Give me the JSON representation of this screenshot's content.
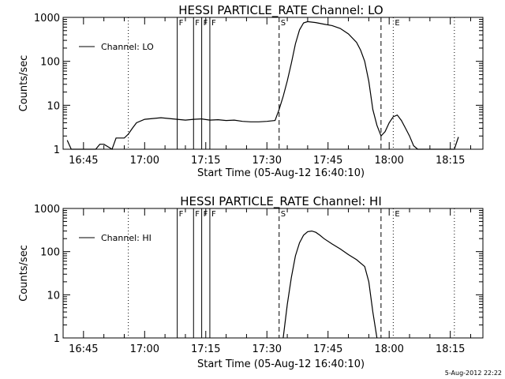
{
  "footer": {
    "timestamp": "5-Aug-2012 22:22"
  },
  "chart_data": [
    {
      "type": "line",
      "title": "HESSI PARTICLE_RATE Channel: LO",
      "xlabel": "Start Time (05-Aug-12 16:40:10)",
      "ylabel": "Counts/sec",
      "yscale": "log",
      "ylim": [
        1,
        1000
      ],
      "xlim": [
        "16:40",
        "18:23"
      ],
      "x_ticks": [
        "16:45",
        "17:00",
        "17:15",
        "17:30",
        "17:45",
        "18:00",
        "18:15"
      ],
      "y_ticks": [
        "1",
        "10",
        "100",
        "1000"
      ],
      "legend": {
        "position": "top-left",
        "entries": [
          "Channel: LO"
        ]
      },
      "grid": false,
      "series": [
        {
          "name": "Channel: LO",
          "x": [
            "16:41",
            "16:42",
            "16:43",
            "16:45",
            "16:46",
            "16:47",
            "16:48",
            "16:49",
            "16:50",
            "16:52",
            "16:53",
            "16:54",
            "16:55",
            "16:56",
            "16:57",
            "16:58",
            "17:00",
            "17:02",
            "17:04",
            "17:06",
            "17:08",
            "17:10",
            "17:12",
            "17:14",
            "17:16",
            "17:18",
            "17:20",
            "17:22",
            "17:24",
            "17:26",
            "17:28",
            "17:30",
            "17:32",
            "17:33",
            "17:34",
            "17:35",
            "17:36",
            "17:37",
            "17:38",
            "17:39",
            "17:40",
            "17:42",
            "17:44",
            "17:46",
            "17:48",
            "17:50",
            "17:52",
            "17:53",
            "17:54",
            "17:55",
            "17:56",
            "17:57",
            "17:58",
            "17:59",
            "18:00",
            "18:01",
            "18:02",
            "18:03",
            "18:04",
            "18:05",
            "18:06",
            "18:07",
            "18:16",
            "18:17"
          ],
          "y": [
            1.6,
            1.0,
            1.0,
            1.0,
            1.0,
            1.0,
            1.0,
            1.3,
            1.3,
            1.0,
            1.8,
            1.8,
            1.8,
            2.2,
            3.0,
            4.0,
            4.8,
            5.0,
            5.2,
            5.0,
            4.8,
            4.6,
            4.8,
            4.9,
            4.6,
            4.7,
            4.5,
            4.6,
            4.3,
            4.2,
            4.2,
            4.3,
            4.5,
            8,
            16,
            36,
            90,
            250,
            520,
            750,
            800,
            760,
            700,
            650,
            560,
            420,
            270,
            180,
            100,
            35,
            8,
            3.5,
            2,
            2.5,
            4,
            5.5,
            6,
            4.5,
            3,
            2,
            1.2,
            1.0,
            1.0,
            1.9
          ]
        }
      ],
      "markers": [
        {
          "label": "F",
          "times": [
            "17:08",
            "17:12",
            "17:14",
            "17:16"
          ]
        },
        {
          "label": "S",
          "time": "17:33",
          "style": "dashed"
        },
        {
          "label": "E",
          "time": "18:01",
          "style": "dotted"
        },
        {
          "label": "",
          "time": "17:58",
          "style": "dashed"
        },
        {
          "label": "",
          "time": "16:56",
          "style": "dotted"
        },
        {
          "label": "",
          "time": "18:16",
          "style": "dotted"
        }
      ]
    },
    {
      "type": "line",
      "title": "HESSI PARTICLE_RATE Channel: HI",
      "xlabel": "Start Time (05-Aug-12 16:40:10)",
      "ylabel": "Counts/sec",
      "yscale": "log",
      "ylim": [
        1,
        1000
      ],
      "xlim": [
        "16:40",
        "18:23"
      ],
      "x_ticks": [
        "16:45",
        "17:00",
        "17:15",
        "17:30",
        "17:45",
        "18:00",
        "18:15"
      ],
      "y_ticks": [
        "1",
        "10",
        "100",
        "1000"
      ],
      "legend": {
        "position": "top-left",
        "entries": [
          "Channel: HI"
        ]
      },
      "grid": false,
      "series": [
        {
          "name": "Channel: HI",
          "x": [
            "17:34",
            "17:35",
            "17:36",
            "17:37",
            "17:38",
            "17:39",
            "17:40",
            "17:41",
            "17:42",
            "17:43",
            "17:44",
            "17:46",
            "17:48",
            "17:50",
            "17:52",
            "17:54",
            "17:55",
            "17:56",
            "17:57"
          ],
          "y": [
            1.0,
            6,
            25,
            80,
            160,
            240,
            290,
            300,
            280,
            240,
            200,
            150,
            115,
            85,
            65,
            45,
            20,
            4,
            1.0
          ]
        }
      ],
      "markers": [
        {
          "label": "F",
          "times": [
            "17:08",
            "17:12",
            "17:14",
            "17:16"
          ]
        },
        {
          "label": "S",
          "time": "17:33",
          "style": "dashed"
        },
        {
          "label": "E",
          "time": "18:01",
          "style": "dotted"
        },
        {
          "label": "",
          "time": "17:58",
          "style": "dashed"
        },
        {
          "label": "",
          "time": "16:56",
          "style": "dotted"
        },
        {
          "label": "",
          "time": "18:16",
          "style": "dotted"
        }
      ]
    }
  ]
}
